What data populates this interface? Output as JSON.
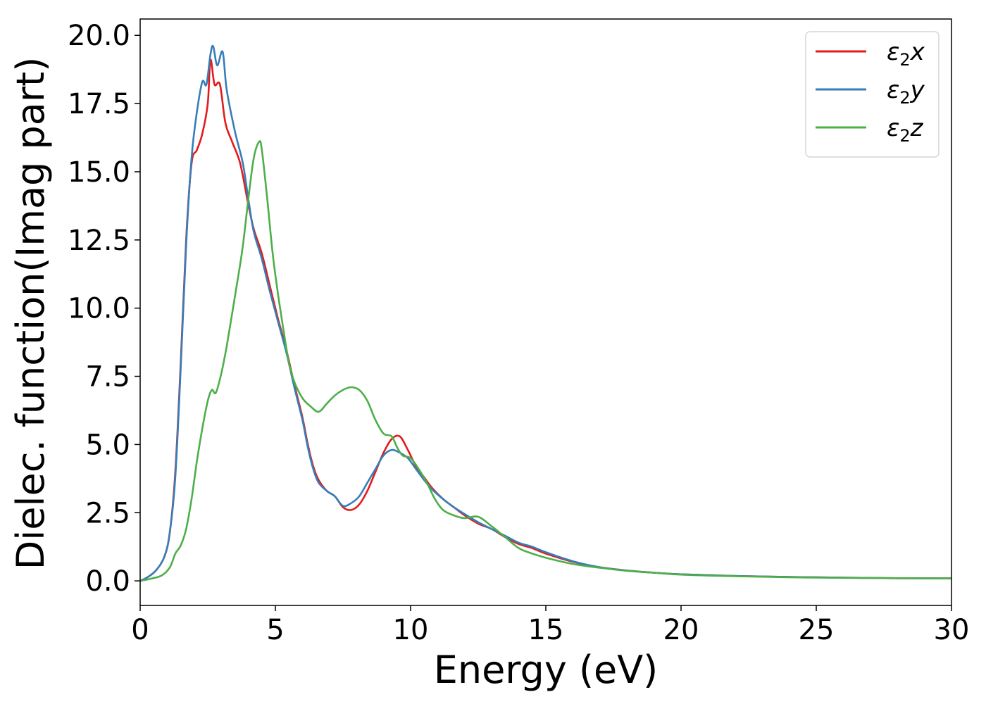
{
  "chart_data": {
    "type": "line",
    "xlabel": "Energy (eV)",
    "ylabel": "Dielec. function(Imag part)",
    "xlim": [
      0,
      30
    ],
    "ylim": [
      -0.9,
      20.6
    ],
    "xticks": [
      0,
      5,
      10,
      15,
      20,
      25,
      30
    ],
    "xtick_labels": [
      "0",
      "5",
      "10",
      "15",
      "20",
      "25",
      "30"
    ],
    "yticks": [
      0.0,
      2.5,
      5.0,
      7.5,
      10.0,
      12.5,
      15.0,
      17.5,
      20.0
    ],
    "ytick_labels": [
      "0.0",
      "2.5",
      "5.0",
      "7.5",
      "10.0",
      "12.5",
      "15.0",
      "17.5",
      "20.0"
    ],
    "grid": false,
    "legend_position": "top-right",
    "series": [
      {
        "name": "ε₂x",
        "legend_base": "ε",
        "legend_sub": "2",
        "legend_suffix": "x",
        "color": "#e41a1c",
        "points": [
          [
            0,
            0
          ],
          [
            0.3,
            0.15
          ],
          [
            0.6,
            0.4
          ],
          [
            0.9,
            0.9
          ],
          [
            1.1,
            1.8
          ],
          [
            1.3,
            4.0
          ],
          [
            1.5,
            8.0
          ],
          [
            1.7,
            12.5
          ],
          [
            1.9,
            15.3
          ],
          [
            2.1,
            15.8
          ],
          [
            2.3,
            16.4
          ],
          [
            2.5,
            17.5
          ],
          [
            2.6,
            19.1
          ],
          [
            2.75,
            18.2
          ],
          [
            2.95,
            18.2
          ],
          [
            3.15,
            16.8
          ],
          [
            3.4,
            16.1
          ],
          [
            3.7,
            15.3
          ],
          [
            4.0,
            13.8
          ],
          [
            4.2,
            12.9
          ],
          [
            4.5,
            12.0
          ],
          [
            4.8,
            10.8
          ],
          [
            5.1,
            9.6
          ],
          [
            5.4,
            8.5
          ],
          [
            5.7,
            7.2
          ],
          [
            6.0,
            6.0
          ],
          [
            6.2,
            5.0
          ],
          [
            6.4,
            4.2
          ],
          [
            6.6,
            3.7
          ],
          [
            6.9,
            3.3
          ],
          [
            7.2,
            3.1
          ],
          [
            7.5,
            2.7
          ],
          [
            7.8,
            2.6
          ],
          [
            8.1,
            2.8
          ],
          [
            8.4,
            3.3
          ],
          [
            8.7,
            4.0
          ],
          [
            9.0,
            4.7
          ],
          [
            9.3,
            5.2
          ],
          [
            9.6,
            5.3
          ],
          [
            9.9,
            4.8
          ],
          [
            10.2,
            4.2
          ],
          [
            10.5,
            3.8
          ],
          [
            10.8,
            3.4
          ],
          [
            11.2,
            3.0
          ],
          [
            11.6,
            2.7
          ],
          [
            12.0,
            2.4
          ],
          [
            12.5,
            2.1
          ],
          [
            13.0,
            1.9
          ],
          [
            13.5,
            1.6
          ],
          [
            14.0,
            1.35
          ],
          [
            14.5,
            1.2
          ],
          [
            15.0,
            1.0
          ],
          [
            16.0,
            0.7
          ],
          [
            17.0,
            0.5
          ],
          [
            18.0,
            0.38
          ],
          [
            19.0,
            0.3
          ],
          [
            20.0,
            0.24
          ],
          [
            22.0,
            0.18
          ],
          [
            25.0,
            0.13
          ],
          [
            28.0,
            0.1
          ],
          [
            30.0,
            0.09
          ]
        ]
      },
      {
        "name": "ε₂y",
        "legend_base": "ε",
        "legend_sub": "2",
        "legend_suffix": "y",
        "color": "#377eb8",
        "points": [
          [
            0,
            0
          ],
          [
            0.3,
            0.15
          ],
          [
            0.6,
            0.4
          ],
          [
            0.9,
            0.9
          ],
          [
            1.1,
            1.8
          ],
          [
            1.3,
            3.8
          ],
          [
            1.5,
            7.8
          ],
          [
            1.7,
            12.3
          ],
          [
            1.9,
            15.5
          ],
          [
            2.1,
            17.2
          ],
          [
            2.3,
            18.3
          ],
          [
            2.45,
            18.2
          ],
          [
            2.6,
            19.3
          ],
          [
            2.7,
            19.6
          ],
          [
            2.85,
            18.9
          ],
          [
            3.05,
            19.4
          ],
          [
            3.2,
            18.0
          ],
          [
            3.5,
            16.5
          ],
          [
            3.8,
            15.3
          ],
          [
            4.0,
            14.0
          ],
          [
            4.2,
            12.8
          ],
          [
            4.5,
            11.8
          ],
          [
            4.8,
            10.6
          ],
          [
            5.1,
            9.5
          ],
          [
            5.4,
            8.4
          ],
          [
            5.7,
            7.1
          ],
          [
            6.0,
            5.9
          ],
          [
            6.2,
            4.9
          ],
          [
            6.4,
            4.1
          ],
          [
            6.6,
            3.6
          ],
          [
            6.9,
            3.3
          ],
          [
            7.2,
            3.1
          ],
          [
            7.5,
            2.75
          ],
          [
            7.8,
            2.85
          ],
          [
            8.1,
            3.1
          ],
          [
            8.4,
            3.6
          ],
          [
            8.7,
            4.1
          ],
          [
            9.0,
            4.6
          ],
          [
            9.3,
            4.8
          ],
          [
            9.6,
            4.7
          ],
          [
            9.9,
            4.5
          ],
          [
            10.2,
            4.1
          ],
          [
            10.5,
            3.7
          ],
          [
            10.8,
            3.35
          ],
          [
            11.2,
            3.0
          ],
          [
            11.6,
            2.7
          ],
          [
            12.0,
            2.45
          ],
          [
            12.5,
            2.15
          ],
          [
            13.0,
            1.9
          ],
          [
            13.5,
            1.65
          ],
          [
            14.0,
            1.4
          ],
          [
            14.5,
            1.25
          ],
          [
            15.0,
            1.05
          ],
          [
            16.0,
            0.72
          ],
          [
            17.0,
            0.5
          ],
          [
            18.0,
            0.38
          ],
          [
            19.0,
            0.3
          ],
          [
            20.0,
            0.24
          ],
          [
            22.0,
            0.18
          ],
          [
            25.0,
            0.13
          ],
          [
            28.0,
            0.1
          ],
          [
            30.0,
            0.09
          ]
        ]
      },
      {
        "name": "ε₂z",
        "legend_base": "ε",
        "legend_sub": "2",
        "legend_suffix": "z",
        "color": "#4daf4a",
        "points": [
          [
            0,
            0
          ],
          [
            0.4,
            0.08
          ],
          [
            0.8,
            0.2
          ],
          [
            1.1,
            0.5
          ],
          [
            1.3,
            1.0
          ],
          [
            1.5,
            1.3
          ],
          [
            1.7,
            1.9
          ],
          [
            1.9,
            3.0
          ],
          [
            2.1,
            4.4
          ],
          [
            2.3,
            5.6
          ],
          [
            2.5,
            6.6
          ],
          [
            2.65,
            7.0
          ],
          [
            2.8,
            6.9
          ],
          [
            3.0,
            7.6
          ],
          [
            3.2,
            8.6
          ],
          [
            3.4,
            9.8
          ],
          [
            3.6,
            11.0
          ],
          [
            3.8,
            12.3
          ],
          [
            4.0,
            14.0
          ],
          [
            4.2,
            15.5
          ],
          [
            4.4,
            16.1
          ],
          [
            4.5,
            15.8
          ],
          [
            4.7,
            14.0
          ],
          [
            4.9,
            12.0
          ],
          [
            5.1,
            10.5
          ],
          [
            5.3,
            9.2
          ],
          [
            5.5,
            8.0
          ],
          [
            5.7,
            7.3
          ],
          [
            6.0,
            6.7
          ],
          [
            6.3,
            6.4
          ],
          [
            6.6,
            6.2
          ],
          [
            6.9,
            6.5
          ],
          [
            7.2,
            6.8
          ],
          [
            7.5,
            7.0
          ],
          [
            7.8,
            7.1
          ],
          [
            8.1,
            7.0
          ],
          [
            8.4,
            6.6
          ],
          [
            8.7,
            5.9
          ],
          [
            9.0,
            5.4
          ],
          [
            9.3,
            5.3
          ],
          [
            9.5,
            4.9
          ],
          [
            9.7,
            4.6
          ],
          [
            10.0,
            4.5
          ],
          [
            10.3,
            4.1
          ],
          [
            10.6,
            3.6
          ],
          [
            10.9,
            3.0
          ],
          [
            11.2,
            2.6
          ],
          [
            11.6,
            2.4
          ],
          [
            12.0,
            2.3
          ],
          [
            12.5,
            2.35
          ],
          [
            13.0,
            2.0
          ],
          [
            13.5,
            1.6
          ],
          [
            14.0,
            1.2
          ],
          [
            14.5,
            1.0
          ],
          [
            15.0,
            0.85
          ],
          [
            16.0,
            0.62
          ],
          [
            17.0,
            0.48
          ],
          [
            18.0,
            0.37
          ],
          [
            19.0,
            0.3
          ],
          [
            20.0,
            0.23
          ],
          [
            22.0,
            0.17
          ],
          [
            25.0,
            0.12
          ],
          [
            28.0,
            0.1
          ],
          [
            30.0,
            0.09
          ]
        ]
      }
    ]
  }
}
